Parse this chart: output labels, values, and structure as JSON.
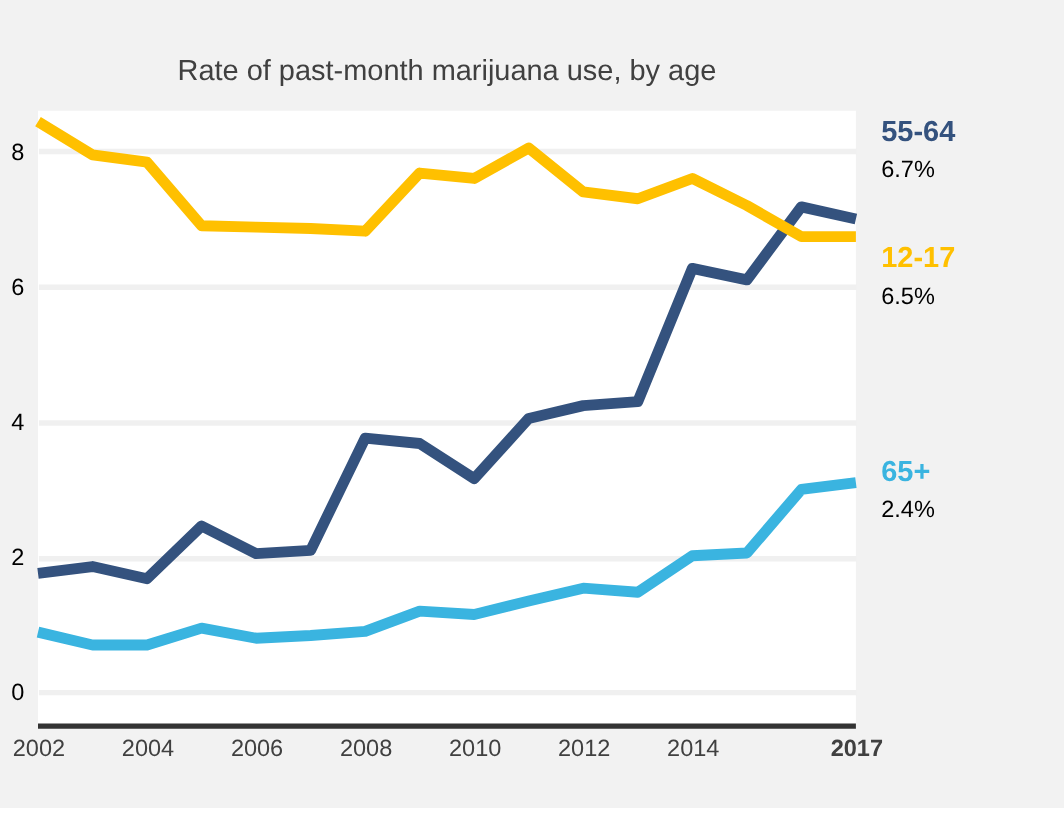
{
  "chart_data": {
    "type": "line",
    "title": "Rate of past-month marijuana use, by age",
    "x": [
      2002,
      2003,
      2004,
      2005,
      2006,
      2007,
      2008,
      2009,
      2010,
      2011,
      2012,
      2013,
      2014,
      2015,
      2016,
      2017
    ],
    "series": [
      {
        "name": "55-64",
        "color": "#34527e",
        "values": [
          1.76,
          1.86,
          1.68,
          2.46,
          2.05,
          2.1,
          3.76,
          3.68,
          3.16,
          4.05,
          4.24,
          4.3,
          6.27,
          6.1,
          7.18,
          7.0
        ]
      },
      {
        "name": "12-17",
        "color": "#ffc000",
        "values": [
          8.44,
          7.95,
          7.84,
          6.9,
          6.88,
          6.86,
          6.82,
          7.68,
          7.6,
          8.05,
          7.4,
          7.3,
          7.6,
          7.2,
          6.74,
          6.74
        ]
      },
      {
        "name": "65+",
        "color": "#3ab4e0",
        "values": [
          0.89,
          0.7,
          0.7,
          0.95,
          0.8,
          0.84,
          0.9,
          1.2,
          1.15,
          1.35,
          1.54,
          1.48,
          2.02,
          2.06,
          3.0,
          3.1
        ]
      }
    ],
    "annotations": [
      "6.7%",
      "6.5%",
      "2.4%"
    ],
    "xlim": [
      2002,
      2017
    ],
    "xticks": [
      2002,
      2004,
      2006,
      2008,
      2010,
      2012,
      2014,
      2017
    ],
    "ylim": [
      -0.5,
      8.6
    ],
    "yticks": [
      0,
      2,
      4,
      6,
      8
    ],
    "grid": "y",
    "marker": "none",
    "line_style": "solid"
  }
}
